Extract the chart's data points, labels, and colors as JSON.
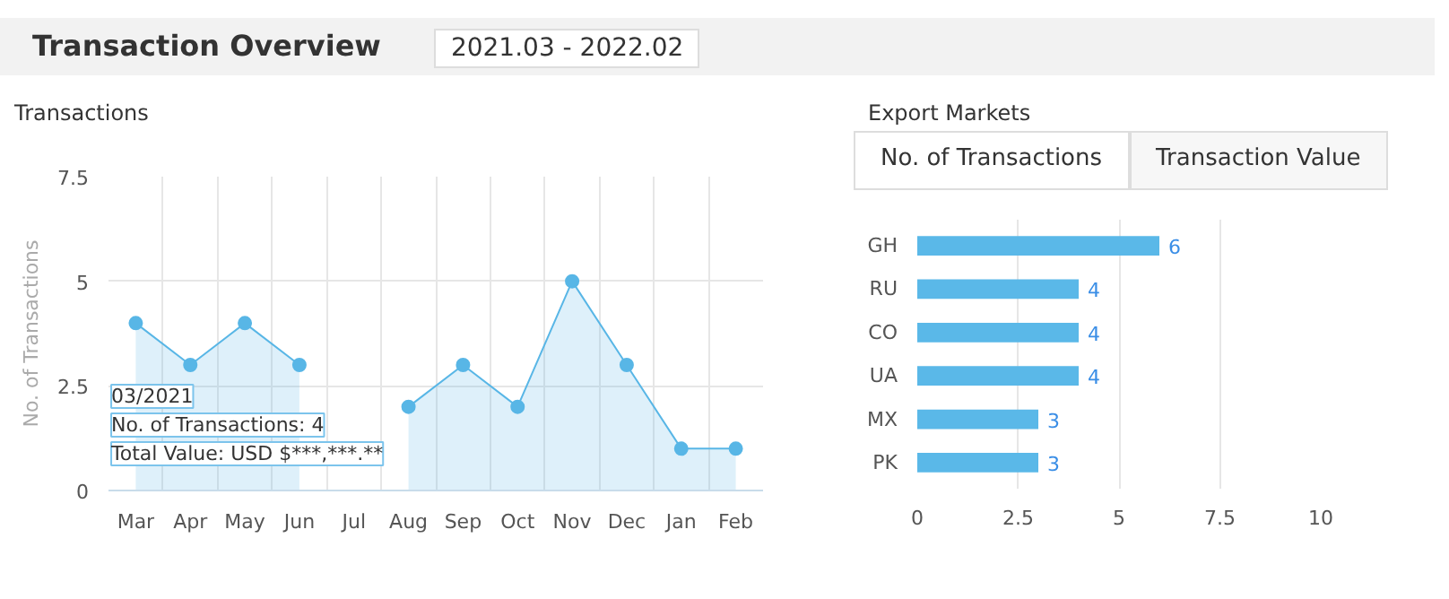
{
  "chart_data": [
    {
      "type": "area",
      "title": "Transactions",
      "ylabel": "No. of Transactions",
      "categories": [
        "Mar",
        "Apr",
        "May",
        "Jun",
        "Jul",
        "Aug",
        "Sep",
        "Oct",
        "Nov",
        "Dec",
        "Jan",
        "Feb"
      ],
      "series": [
        {
          "color": "#58b6e6",
          "values": [
            4,
            3,
            4,
            3,
            null,
            2,
            3,
            2,
            5,
            3,
            1,
            1
          ]
        }
      ],
      "ylim": [
        0,
        7.5
      ],
      "yticks": [
        0,
        2.5,
        5,
        7.5
      ],
      "grid": true,
      "marker": "circle",
      "annotations": [
        "Transaction Overview",
        "2021.03 - 2022.02",
        "03/2021",
        "No. of Transactions: 4",
        "Total Value: USD $***,***.**"
      ]
    },
    {
      "type": "bar",
      "orientation": "horizontal",
      "title": "Export Markets",
      "categories": [
        "GH",
        "RU",
        "CO",
        "UA",
        "MX",
        "PK"
      ],
      "values": [
        6,
        4,
        4,
        4,
        3,
        3
      ],
      "color": "#5ab8e8",
      "xlim": [
        0,
        10
      ],
      "xticks": [
        0,
        2.5,
        5,
        7.5,
        10
      ],
      "grid": "x",
      "data_labels": true,
      "annotations": [
        "No. of Transactions",
        "Transaction Value"
      ]
    }
  ]
}
